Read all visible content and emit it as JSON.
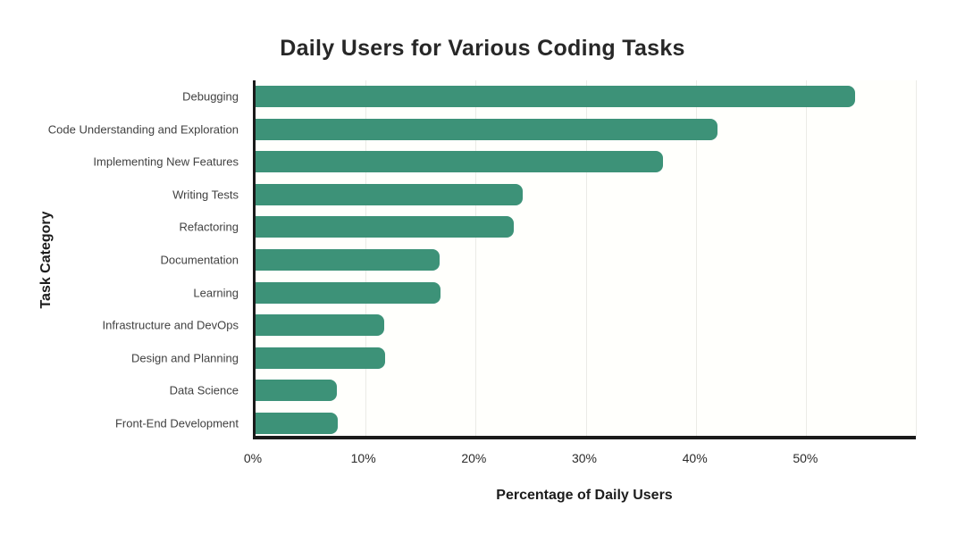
{
  "chart_data": {
    "type": "bar",
    "orientation": "horizontal",
    "title": "Daily Users for Various Coding Tasks",
    "xlabel": "Percentage of Daily Users",
    "ylabel": "Task Category",
    "categories": [
      "Debugging",
      "Code Understanding and Exploration",
      "Implementing New Features",
      "Writing Tests",
      "Refactoring",
      "Documentation",
      "Learning",
      "Infrastructure and DevOps",
      "Design and Planning",
      "Data Science",
      "Front-End Development"
    ],
    "values": [
      54.5,
      42,
      37,
      24.3,
      23.5,
      16.7,
      16.8,
      11.7,
      11.8,
      7.4,
      7.5
    ],
    "unit": "%",
    "xlim": [
      0,
      60
    ],
    "x_tick_values": [
      0,
      10,
      20,
      30,
      40,
      50
    ],
    "x_tick_labels": [
      "0%",
      "10%",
      "20%",
      "30%",
      "40%",
      "50%"
    ],
    "grid_values": [
      10,
      20,
      30,
      40,
      50,
      60
    ],
    "grid": true,
    "legend": false,
    "bar_color": "#3d9278",
    "axis_color": "#1a1a1a",
    "grid_color": "#ebebe6"
  }
}
